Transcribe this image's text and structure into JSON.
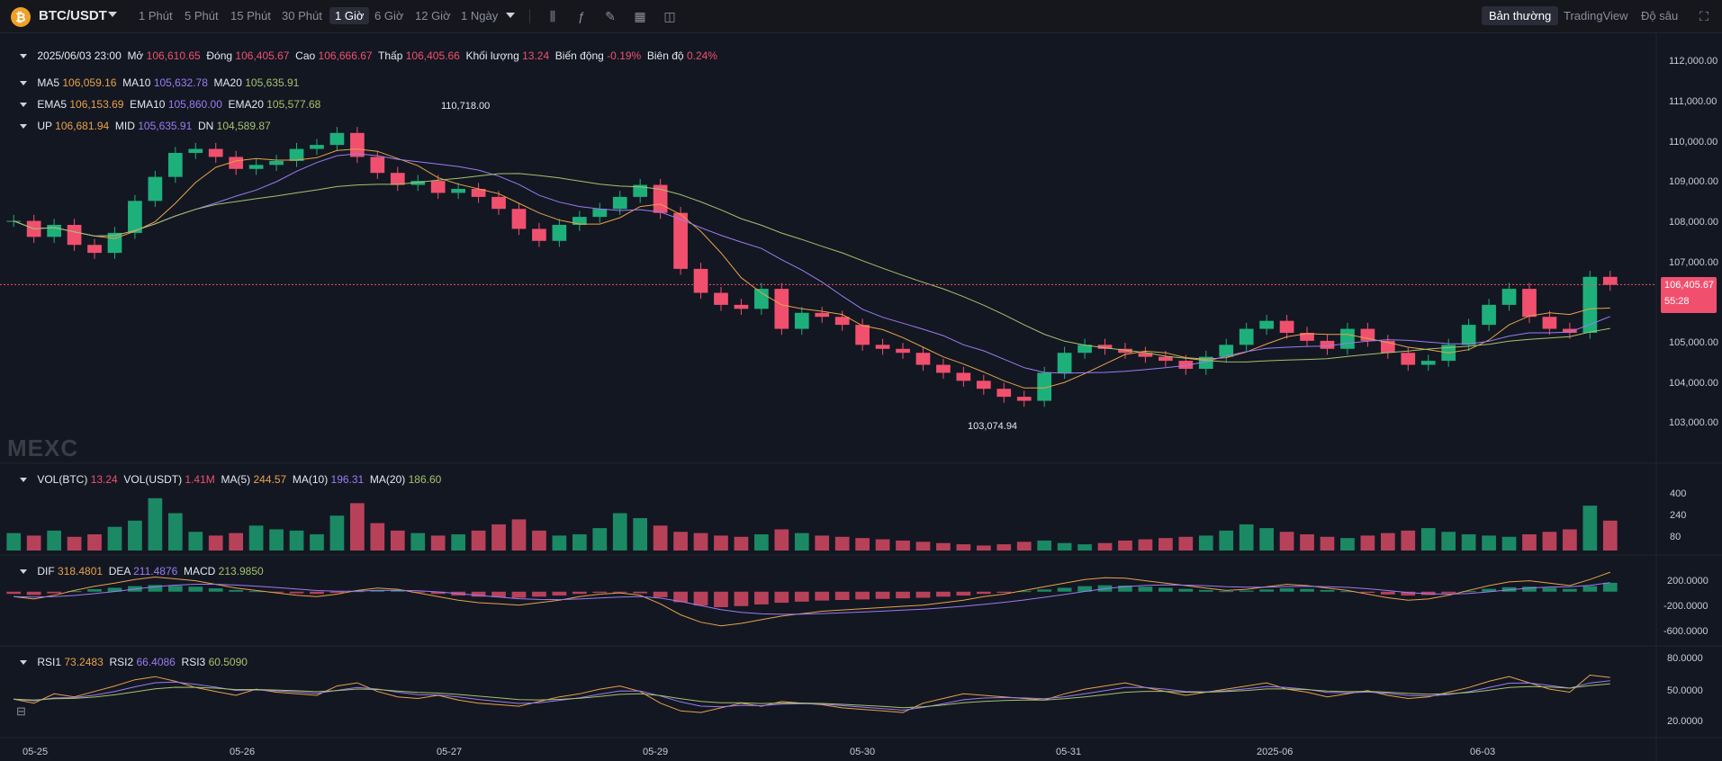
{
  "header": {
    "logo_glyph": "₿",
    "pair": "BTC/USDT",
    "timeframes": [
      "1 Phút",
      "5 Phút",
      "15 Phút",
      "30 Phút",
      "1 Giờ",
      "6 Giờ",
      "12 Giờ",
      "1 Ngày"
    ],
    "active_timeframe": "1 Giờ",
    "tools": [
      "candle-type-icon",
      "indicator-icon",
      "pencil-icon",
      "layout-icon",
      "camera-icon"
    ],
    "views": [
      "Bản thường",
      "TradingView",
      "Độ sâu"
    ],
    "active_view": "Bản thường",
    "fullscreen_icon": "fullscreen-icon"
  },
  "ohlc": {
    "date": "2025/06/03 23:00",
    "open_label": "Mở",
    "open": "106,610.65",
    "close_label": "Đóng",
    "close": "106,405.67",
    "high_label": "Cao",
    "high": "106,666.67",
    "low_label": "Thấp",
    "low": "106,405.66",
    "volume_label": "Khối lượng",
    "volume": "13.24",
    "change_label": "Biến động",
    "change": "-0.19%",
    "amplitude_label": "Biên độ",
    "amplitude": "0.24%"
  },
  "ma": {
    "ma5_label": "MA5",
    "ma5": "106,059.16",
    "ma10_label": "MA10",
    "ma10": "105,632.78",
    "ma20_label": "MA20",
    "ma20": "105,635.91"
  },
  "ema": {
    "ema5_label": "EMA5",
    "ema5": "106,153.69",
    "ema10_label": "EMA10",
    "ema10": "105,860.00",
    "ema20_label": "EMA20",
    "ema20": "105,577.68"
  },
  "boll": {
    "up_label": "UP",
    "up": "106,681.94",
    "mid_label": "MID",
    "mid": "105,635.91",
    "dn_label": "DN",
    "dn": "104,589.87"
  },
  "vol": {
    "btc_label": "VOL(BTC)",
    "btc": "13.24",
    "usdt_label": "VOL(USDT)",
    "usdt": "1.41M",
    "ma5_label": "MA(5)",
    "ma5": "244.57",
    "ma10_label": "MA(10)",
    "ma10": "196.31",
    "ma20_label": "MA(20)",
    "ma20": "186.60"
  },
  "macd": {
    "dif_label": "DIF",
    "dif": "318.4801",
    "dea_label": "DEA",
    "dea": "211.4876",
    "macd_label": "MACD",
    "macd": "213.9850"
  },
  "rsi": {
    "rsi1_label": "RSI1",
    "rsi1": "73.2483",
    "rsi2_label": "RSI2",
    "rsi2": "66.4086",
    "rsi3_label": "RSI3",
    "rsi3": "60.5090"
  },
  "watermark": "MEXC",
  "current_price": {
    "price": "106,405.67",
    "countdown": "55:28",
    "value": 106405.67
  },
  "colors": {
    "up": "#1db07b",
    "down": "#f0506e",
    "ma5": "#e8a24a",
    "ma10": "#9b7cf2",
    "ma20": "#a5c26b",
    "bg": "#131722"
  },
  "chart_data": {
    "type": "candlestick",
    "x_dates": [
      "05-25",
      "05-26",
      "05-27",
      "05-29",
      "05-30",
      "05-31",
      "2025-06",
      "06-03"
    ],
    "price_axis": {
      "ticks": [
        "112,000.00",
        "111,000.00",
        "110,000.00",
        "109,000.00",
        "108,000.00",
        "107,000.00",
        "105,000.00",
        "104,000.00",
        "103,000.00"
      ],
      "ylim": [
        102500,
        112400
      ]
    },
    "high_marker": "110,718.00",
    "low_marker": "103,074.94",
    "price_series": [
      108000,
      107600,
      107900,
      107400,
      107200,
      107700,
      108500,
      109100,
      109700,
      109800,
      109600,
      109300,
      109400,
      109500,
      109800,
      109900,
      110200,
      109600,
      109200,
      108900,
      109000,
      108700,
      108800,
      108600,
      108300,
      107800,
      107500,
      107900,
      108100,
      108300,
      108600,
      108900,
      108200,
      106800,
      106200,
      105900,
      105800,
      106300,
      105300,
      105700,
      105600,
      105400,
      104900,
      104800,
      104700,
      104400,
      104200,
      104000,
      103800,
      103600,
      103500,
      104200,
      104700,
      104900,
      104800,
      104700,
      104600,
      104500,
      104300,
      104600,
      104900,
      105300,
      105500,
      105200,
      105000,
      104800,
      105300,
      105000,
      104700,
      104400,
      104500,
      104900,
      105400,
      105900,
      106300,
      105600,
      105300,
      105200,
      106600,
      106400
    ],
    "volume_axis": {
      "ticks": [
        "400",
        "240",
        "80"
      ],
      "ylim": [
        0,
        520
      ]
    },
    "volume_series": [
      140,
      120,
      160,
      110,
      130,
      190,
      240,
      420,
      300,
      150,
      120,
      140,
      200,
      170,
      160,
      130,
      280,
      380,
      220,
      160,
      140,
      120,
      130,
      160,
      210,
      250,
      160,
      120,
      130,
      180,
      300,
      260,
      200,
      150,
      140,
      120,
      110,
      130,
      170,
      140,
      120,
      110,
      100,
      90,
      80,
      70,
      60,
      50,
      40,
      50,
      70,
      80,
      60,
      50,
      60,
      80,
      90,
      100,
      110,
      120,
      160,
      210,
      180,
      150,
      130,
      110,
      100,
      120,
      140,
      160,
      180,
      150,
      130,
      120,
      110,
      130,
      150,
      170,
      360,
      240
    ],
    "macd_axis": {
      "ticks": [
        "200.0000",
        "-200.0000",
        "-600.0000"
      ],
      "ylim": [
        -800,
        380
      ]
    },
    "macd_series": [
      -80,
      -120,
      -60,
      20,
      90,
      140,
      200,
      240,
      210,
      180,
      120,
      60,
      20,
      -20,
      -60,
      -80,
      -40,
      20,
      60,
      40,
      -20,
      -80,
      -140,
      -180,
      -200,
      -220,
      -180,
      -140,
      -80,
      -40,
      -20,
      -60,
      -200,
      -380,
      -500,
      -560,
      -520,
      -460,
      -400,
      -360,
      -320,
      -300,
      -280,
      -260,
      -240,
      -220,
      -180,
      -140,
      -80,
      -40,
      20,
      80,
      140,
      200,
      230,
      220,
      180,
      140,
      100,
      60,
      20,
      40,
      80,
      120,
      100,
      60,
      20,
      -40,
      -100,
      -140,
      -120,
      -60,
      20,
      100,
      160,
      180,
      140,
      100,
      200,
      320
    ],
    "rsi_axis": {
      "ticks": [
        "80.0000",
        "50.0000",
        "20.0000"
      ],
      "ylim": [
        5,
        95
      ]
    },
    "rsi_series": [
      45,
      40,
      52,
      48,
      55,
      62,
      70,
      74,
      68,
      60,
      55,
      50,
      58,
      54,
      52,
      50,
      62,
      66,
      55,
      48,
      46,
      50,
      44,
      40,
      38,
      36,
      42,
      48,
      52,
      58,
      62,
      55,
      40,
      30,
      28,
      34,
      40,
      36,
      42,
      40,
      38,
      34,
      32,
      30,
      28,
      40,
      46,
      52,
      50,
      48,
      46,
      44,
      52,
      58,
      62,
      66,
      60,
      55,
      50,
      54,
      58,
      62,
      66,
      58,
      54,
      48,
      52,
      56,
      50,
      46,
      48,
      54,
      60,
      68,
      74,
      66,
      58,
      54,
      76,
      73
    ]
  }
}
